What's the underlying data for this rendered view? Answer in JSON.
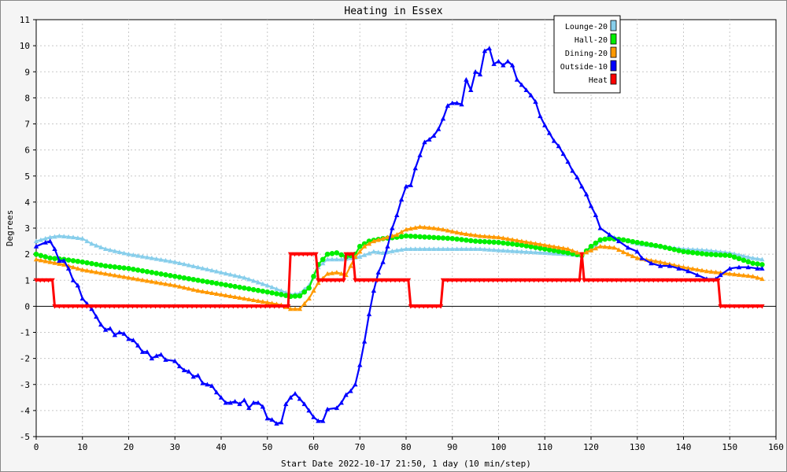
{
  "chart_data": {
    "type": "line",
    "title": "Heating in Essex",
    "xlabel": "Start Date 2022-10-17 21:50, 1 day (10 min/step)",
    "ylabel": "Degrees",
    "xlim": [
      0,
      160
    ],
    "ylim": [
      -5,
      11
    ],
    "xticks": [
      0,
      10,
      20,
      30,
      40,
      50,
      60,
      70,
      80,
      90,
      100,
      110,
      120,
      130,
      140,
      150,
      160
    ],
    "yticks": [
      -5,
      -4,
      -3,
      -2,
      -1,
      0,
      1,
      2,
      3,
      4,
      5,
      6,
      7,
      8,
      9,
      10,
      11
    ],
    "grid": true,
    "legend_position": "top-right",
    "series": [
      {
        "name": "Lounge-20",
        "color": "#87ceeb",
        "marker": "triangle",
        "points": [
          [
            0,
            2.5
          ],
          [
            3,
            2.65
          ],
          [
            5,
            2.7
          ],
          [
            8,
            2.65
          ],
          [
            10,
            2.6
          ],
          [
            12,
            2.4
          ],
          [
            15,
            2.2
          ],
          [
            20,
            2.0
          ],
          [
            25,
            1.85
          ],
          [
            30,
            1.7
          ],
          [
            35,
            1.5
          ],
          [
            40,
            1.3
          ],
          [
            45,
            1.1
          ],
          [
            50,
            0.8
          ],
          [
            53,
            0.6
          ],
          [
            55,
            0.45
          ],
          [
            57,
            0.5
          ],
          [
            59,
            0.8
          ],
          [
            61,
            1.5
          ],
          [
            63,
            1.8
          ],
          [
            66,
            1.8
          ],
          [
            70,
            1.9
          ],
          [
            73,
            2.1
          ],
          [
            75,
            2.05
          ],
          [
            78,
            2.15
          ],
          [
            80,
            2.2
          ],
          [
            85,
            2.2
          ],
          [
            90,
            2.2
          ],
          [
            93,
            2.2
          ],
          [
            96,
            2.2
          ],
          [
            100,
            2.15
          ],
          [
            105,
            2.1
          ],
          [
            110,
            2.05
          ],
          [
            115,
            2.0
          ],
          [
            118,
            1.95
          ],
          [
            120,
            2.2
          ],
          [
            122,
            2.5
          ],
          [
            124,
            2.7
          ],
          [
            126,
            2.6
          ],
          [
            130,
            2.4
          ],
          [
            135,
            2.3
          ],
          [
            140,
            2.2
          ],
          [
            145,
            2.15
          ],
          [
            150,
            2.05
          ],
          [
            155,
            1.85
          ],
          [
            157,
            1.8
          ]
        ]
      },
      {
        "name": "Hall-20",
        "color": "#00ee00",
        "marker": "circle",
        "points": [
          [
            0,
            2.0
          ],
          [
            3,
            1.85
          ],
          [
            6,
            1.8
          ],
          [
            10,
            1.7
          ],
          [
            15,
            1.55
          ],
          [
            20,
            1.45
          ],
          [
            25,
            1.3
          ],
          [
            30,
            1.15
          ],
          [
            35,
            1.0
          ],
          [
            40,
            0.85
          ],
          [
            45,
            0.7
          ],
          [
            50,
            0.55
          ],
          [
            53,
            0.45
          ],
          [
            55,
            0.38
          ],
          [
            57,
            0.4
          ],
          [
            59,
            0.7
          ],
          [
            61,
            1.6
          ],
          [
            63,
            2.0
          ],
          [
            65,
            2.05
          ],
          [
            67,
            1.9
          ],
          [
            69,
            2.0
          ],
          [
            70,
            2.3
          ],
          [
            72,
            2.5
          ],
          [
            75,
            2.6
          ],
          [
            78,
            2.65
          ],
          [
            80,
            2.7
          ],
          [
            85,
            2.65
          ],
          [
            90,
            2.6
          ],
          [
            95,
            2.5
          ],
          [
            100,
            2.45
          ],
          [
            105,
            2.35
          ],
          [
            110,
            2.2
          ],
          [
            115,
            2.05
          ],
          [
            118,
            1.95
          ],
          [
            120,
            2.3
          ],
          [
            122,
            2.55
          ],
          [
            124,
            2.6
          ],
          [
            127,
            2.55
          ],
          [
            130,
            2.45
          ],
          [
            135,
            2.3
          ],
          [
            140,
            2.1
          ],
          [
            145,
            2.0
          ],
          [
            150,
            1.95
          ],
          [
            155,
            1.65
          ],
          [
            157,
            1.6
          ]
        ]
      },
      {
        "name": "Dining-20",
        "color": "#ff9900",
        "marker": "triangle",
        "points": [
          [
            0,
            1.8
          ],
          [
            3,
            1.7
          ],
          [
            6,
            1.6
          ],
          [
            10,
            1.4
          ],
          [
            15,
            1.25
          ],
          [
            20,
            1.1
          ],
          [
            25,
            0.95
          ],
          [
            30,
            0.8
          ],
          [
            35,
            0.6
          ],
          [
            40,
            0.45
          ],
          [
            45,
            0.3
          ],
          [
            50,
            0.15
          ],
          [
            53,
            0.05
          ],
          [
            55,
            -0.1
          ],
          [
            57,
            -0.1
          ],
          [
            59,
            0.3
          ],
          [
            61,
            0.9
          ],
          [
            63,
            1.25
          ],
          [
            65,
            1.3
          ],
          [
            67,
            1.2
          ],
          [
            69,
            1.9
          ],
          [
            71,
            2.3
          ],
          [
            73,
            2.5
          ],
          [
            75,
            2.6
          ],
          [
            78,
            2.75
          ],
          [
            80,
            2.95
          ],
          [
            83,
            3.05
          ],
          [
            86,
            3.0
          ],
          [
            88,
            2.95
          ],
          [
            92,
            2.8
          ],
          [
            96,
            2.7
          ],
          [
            100,
            2.65
          ],
          [
            105,
            2.5
          ],
          [
            110,
            2.35
          ],
          [
            115,
            2.2
          ],
          [
            118,
            2.0
          ],
          [
            120,
            2.15
          ],
          [
            122,
            2.3
          ],
          [
            125,
            2.25
          ],
          [
            128,
            2.0
          ],
          [
            130,
            1.85
          ],
          [
            135,
            1.7
          ],
          [
            140,
            1.5
          ],
          [
            145,
            1.35
          ],
          [
            150,
            1.25
          ],
          [
            155,
            1.15
          ],
          [
            157,
            1.05
          ]
        ]
      },
      {
        "name": "Outside-10",
        "color": "#0000ff",
        "marker": "triangle",
        "points": [
          [
            0,
            2.3
          ],
          [
            2,
            2.45
          ],
          [
            3,
            2.5
          ],
          [
            4,
            2.2
          ],
          [
            5,
            1.75
          ],
          [
            6,
            1.75
          ],
          [
            7,
            1.45
          ],
          [
            8,
            1.0
          ],
          [
            9,
            0.8
          ],
          [
            10,
            0.3
          ],
          [
            11,
            0.1
          ],
          [
            12,
            -0.1
          ],
          [
            13,
            -0.4
          ],
          [
            14,
            -0.7
          ],
          [
            15,
            -0.9
          ],
          [
            16,
            -0.85
          ],
          [
            17,
            -1.1
          ],
          [
            18,
            -1.0
          ],
          [
            19,
            -1.05
          ],
          [
            20,
            -1.25
          ],
          [
            21,
            -1.3
          ],
          [
            22,
            -1.5
          ],
          [
            23,
            -1.75
          ],
          [
            24,
            -1.75
          ],
          [
            25,
            -2.0
          ],
          [
            26,
            -1.9
          ],
          [
            27,
            -1.85
          ],
          [
            28,
            -2.05
          ],
          [
            30,
            -2.1
          ],
          [
            31,
            -2.3
          ],
          [
            32,
            -2.45
          ],
          [
            33,
            -2.5
          ],
          [
            34,
            -2.7
          ],
          [
            35,
            -2.65
          ],
          [
            36,
            -2.95
          ],
          [
            37,
            -3.0
          ],
          [
            38,
            -3.05
          ],
          [
            39,
            -3.3
          ],
          [
            40,
            -3.5
          ],
          [
            41,
            -3.7
          ],
          [
            42,
            -3.7
          ],
          [
            43,
            -3.65
          ],
          [
            44,
            -3.75
          ],
          [
            45,
            -3.6
          ],
          [
            46,
            -3.9
          ],
          [
            47,
            -3.7
          ],
          [
            48,
            -3.7
          ],
          [
            49,
            -3.85
          ],
          [
            50,
            -4.3
          ],
          [
            51,
            -4.35
          ],
          [
            52,
            -4.5
          ],
          [
            53,
            -4.45
          ],
          [
            54,
            -3.75
          ],
          [
            55,
            -3.5
          ],
          [
            56,
            -3.35
          ],
          [
            57,
            -3.55
          ],
          [
            58,
            -3.75
          ],
          [
            59,
            -4.0
          ],
          [
            60,
            -4.25
          ],
          [
            61,
            -4.4
          ],
          [
            62,
            -4.4
          ],
          [
            63,
            -3.95
          ],
          [
            65,
            -3.9
          ],
          [
            66,
            -3.7
          ],
          [
            67,
            -3.4
          ],
          [
            68,
            -3.25
          ],
          [
            69,
            -3.0
          ],
          [
            70,
            -2.25
          ],
          [
            71,
            -1.35
          ],
          [
            72,
            -0.3
          ],
          [
            73,
            0.6
          ],
          [
            74,
            1.3
          ],
          [
            75,
            1.7
          ],
          [
            76,
            2.3
          ],
          [
            77,
            3.0
          ],
          [
            78,
            3.5
          ],
          [
            79,
            4.1
          ],
          [
            80,
            4.6
          ],
          [
            81,
            4.65
          ],
          [
            82,
            5.3
          ],
          [
            83,
            5.8
          ],
          [
            84,
            6.3
          ],
          [
            85,
            6.4
          ],
          [
            86,
            6.55
          ],
          [
            87,
            6.8
          ],
          [
            88,
            7.2
          ],
          [
            89,
            7.7
          ],
          [
            90,
            7.8
          ],
          [
            91,
            7.8
          ],
          [
            92,
            7.75
          ],
          [
            93,
            8.7
          ],
          [
            94,
            8.3
          ],
          [
            95,
            9.0
          ],
          [
            96,
            8.9
          ],
          [
            97,
            9.8
          ],
          [
            98,
            9.9
          ],
          [
            99,
            9.3
          ],
          [
            100,
            9.4
          ],
          [
            101,
            9.25
          ],
          [
            102,
            9.4
          ],
          [
            103,
            9.25
          ],
          [
            104,
            8.7
          ],
          [
            105,
            8.5
          ],
          [
            106,
            8.3
          ],
          [
            107,
            8.1
          ],
          [
            108,
            7.85
          ],
          [
            109,
            7.3
          ],
          [
            110,
            6.95
          ],
          [
            111,
            6.65
          ],
          [
            112,
            6.35
          ],
          [
            113,
            6.15
          ],
          [
            114,
            5.85
          ],
          [
            115,
            5.55
          ],
          [
            116,
            5.2
          ],
          [
            117,
            4.95
          ],
          [
            118,
            4.6
          ],
          [
            119,
            4.3
          ],
          [
            120,
            3.85
          ],
          [
            121,
            3.5
          ],
          [
            122,
            3.0
          ],
          [
            124,
            2.75
          ],
          [
            126,
            2.5
          ],
          [
            128,
            2.25
          ],
          [
            130,
            2.1
          ],
          [
            131,
            1.85
          ],
          [
            133,
            1.65
          ],
          [
            135,
            1.55
          ],
          [
            137,
            1.55
          ],
          [
            139,
            1.45
          ],
          [
            141,
            1.35
          ],
          [
            143,
            1.2
          ],
          [
            145,
            1.05
          ],
          [
            147,
            1.05
          ],
          [
            148,
            1.2
          ],
          [
            150,
            1.45
          ],
          [
            152,
            1.5
          ],
          [
            154,
            1.5
          ],
          [
            156,
            1.45
          ],
          [
            157,
            1.45
          ]
        ]
      },
      {
        "name": "Heat",
        "color": "#ff0000",
        "marker": "triangle-down",
        "points": [
          [
            0,
            1
          ],
          [
            3.5,
            1
          ],
          [
            4,
            0
          ],
          [
            54.5,
            0
          ],
          [
            55,
            2
          ],
          [
            60.5,
            2
          ],
          [
            61,
            1
          ],
          [
            66.5,
            1
          ],
          [
            67,
            2
          ],
          [
            68.5,
            2
          ],
          [
            69,
            1
          ],
          [
            80.5,
            1
          ],
          [
            81,
            0
          ],
          [
            87.5,
            0
          ],
          [
            88,
            1
          ],
          [
            117.5,
            1
          ],
          [
            118,
            2
          ],
          [
            118.5,
            1
          ],
          [
            147.5,
            1
          ],
          [
            148,
            0
          ],
          [
            157,
            0
          ]
        ]
      }
    ]
  }
}
